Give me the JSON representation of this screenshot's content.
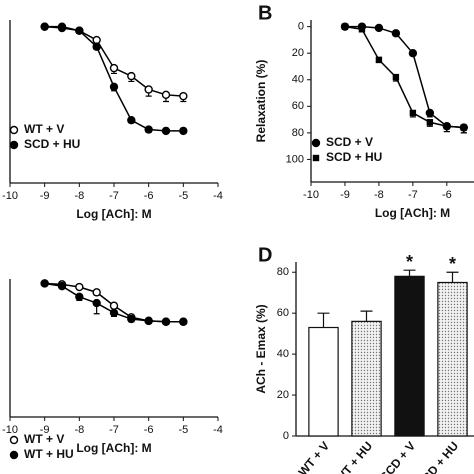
{
  "chart_data": [
    {
      "type": "line",
      "x": [
        -9,
        -8.5,
        -8,
        -7.5,
        -7,
        -6.5,
        -6,
        -5.5,
        -5
      ],
      "xlabel": "Log [ACh]: M",
      "xlim": [
        -10,
        -4
      ],
      "xticks": [
        -10,
        -9,
        -8,
        -7,
        -6,
        -5,
        -4
      ],
      "ylim": [
        -5,
        117
      ],
      "y_reversed": true,
      "legend": "lower left",
      "series": [
        {
          "name": "WT + V",
          "color": "#000000",
          "marker": "open-circle",
          "values": [
            0,
            0,
            3,
            10,
            31,
            37,
            47,
            51,
            52
          ],
          "errors": [
            1,
            1,
            2,
            3,
            4,
            4,
            5,
            5,
            4
          ]
        },
        {
          "name": "SCD + HU",
          "color": "#000000",
          "marker": "circle",
          "values": [
            0,
            1,
            3,
            15,
            45,
            70,
            77,
            78,
            78
          ],
          "errors": [
            1,
            1,
            1,
            2,
            3,
            2,
            2,
            1,
            1
          ]
        }
      ]
    },
    {
      "type": "line",
      "panel": "B",
      "x": [
        -9,
        -8.5,
        -8,
        -7.5,
        -7,
        -6.5,
        -6,
        -5.5
      ],
      "xlabel": "Log [ACh]: M",
      "ylabel": "Relaxation (%)",
      "xlim": [
        -10,
        -5.2
      ],
      "xticks": [
        -10,
        -9,
        -8,
        -7,
        -6
      ],
      "ylim": [
        -5,
        117
      ],
      "yticks": [
        0,
        20,
        40,
        60,
        80,
        100
      ],
      "y_reversed": true,
      "legend": "lower left",
      "series": [
        {
          "name": "SCD + V",
          "color": "#000000",
          "marker": "circle",
          "values": [
            0,
            0,
            1,
            5,
            20,
            65,
            75,
            76
          ],
          "errors": [
            1,
            1,
            1,
            2,
            2,
            3,
            4,
            4
          ]
        },
        {
          "name": "SCD + HU",
          "color": "#000000",
          "marker": "square",
          "values": [
            0,
            2,
            25,
            38,
            65,
            72,
            75,
            76
          ],
          "errors": [
            1,
            1,
            2,
            3,
            3,
            3,
            4,
            4
          ]
        }
      ]
    },
    {
      "type": "line",
      "x": [
        -9,
        -8.5,
        -8,
        -7.5,
        -7,
        -6.5,
        -6,
        -5.5,
        -5
      ],
      "xlabel": "Log [ACh]: M",
      "xlim": [
        -10,
        -4
      ],
      "xticks": [
        -10,
        -9,
        -8,
        -7,
        -6,
        -5,
        -4
      ],
      "ylim": [
        -5,
        150
      ],
      "y_reversed": true,
      "legend": "lower left",
      "series": [
        {
          "name": "WT + V",
          "color": "#000000",
          "marker": "open-circle",
          "values": [
            0,
            1,
            4,
            10,
            25,
            38,
            42,
            43,
            43
          ],
          "errors": [
            1,
            1,
            2,
            3,
            3,
            3,
            2,
            2,
            2
          ]
        },
        {
          "name": "WT + HU",
          "color": "#000000",
          "marker": "circle",
          "values": [
            0,
            3,
            15,
            22,
            33,
            40,
            42,
            43,
            43
          ],
          "errors": [
            1,
            2,
            4,
            12,
            4,
            3,
            2,
            2,
            2
          ]
        }
      ]
    },
    {
      "type": "bar",
      "panel": "D",
      "ylabel": "ACh - Emax (%)",
      "categories": [
        "WT + V",
        "WT + HU",
        "SCD + V",
        "SCD + HU"
      ],
      "values": [
        53,
        56,
        78,
        75
      ],
      "errors": [
        7,
        5,
        3,
        5
      ],
      "annotations": [
        null,
        null,
        "*",
        "*"
      ],
      "colors": [
        "#ffffff",
        "#dcdcdc",
        "#111111",
        "#dcdcdc"
      ],
      "dotted": [
        false,
        true,
        false,
        true
      ],
      "ylim": [
        0,
        85
      ],
      "yticks": [
        0,
        20,
        40,
        60,
        80
      ]
    }
  ]
}
